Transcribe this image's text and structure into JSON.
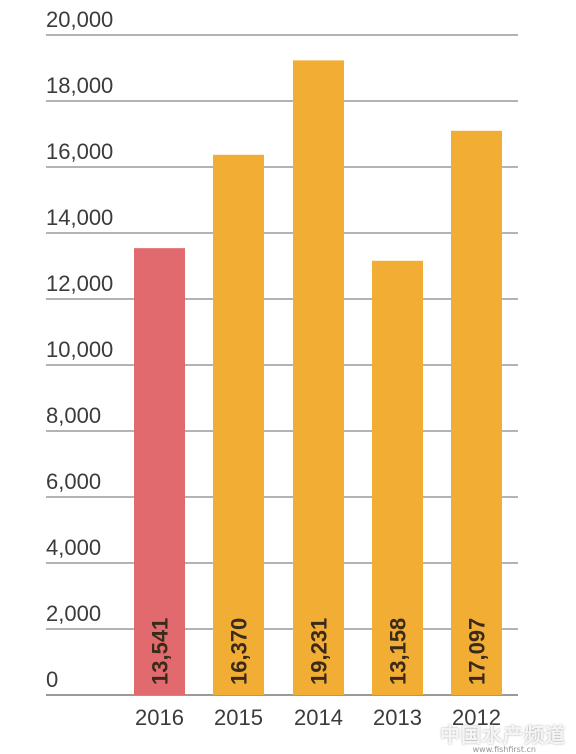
{
  "chart_data": {
    "type": "bar",
    "categories": [
      "2016",
      "2015",
      "2014",
      "2013",
      "2012"
    ],
    "values": [
      13541,
      16370,
      19231,
      13158,
      17097
    ],
    "value_labels": [
      "13,541",
      "16,370",
      "19,231",
      "13,158",
      "17,097"
    ],
    "ylim": [
      0,
      20000
    ],
    "yticks": [
      0,
      2000,
      4000,
      6000,
      8000,
      10000,
      12000,
      14000,
      16000,
      18000,
      20000
    ],
    "ytick_labels": [
      "0",
      "2,000",
      "4,000",
      "6,000",
      "8,000",
      "10,000",
      "12,000",
      "14,000",
      "16,000",
      "18,000",
      "20,000"
    ],
    "grid": true,
    "colors": {
      "highlight": "#e06a6e",
      "default": "#f2ad35",
      "grid": "#9a9a9a"
    },
    "highlight_index": 0
  },
  "watermark": {
    "text": "中国水产频道",
    "sub": "www.fishfirst.cn"
  }
}
